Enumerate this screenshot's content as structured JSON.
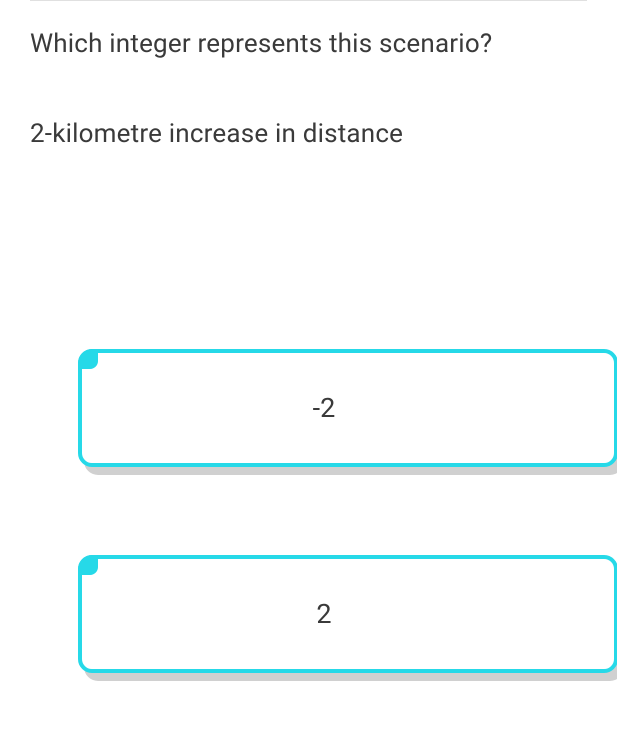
{
  "quiz": {
    "question": "Which integer represents this scenario?",
    "scenario": "2-kilometre increase in distance",
    "options": [
      {
        "label": "-2"
      },
      {
        "label": "2"
      }
    ],
    "colors": {
      "option_border": "#26d9e8",
      "option_shadow": "#d0d0d0",
      "text": "#3a3a3a",
      "divider": "#e0e0e0",
      "background": "#ffffff"
    },
    "fonts": {
      "question_size": 26,
      "option_size": 27
    }
  }
}
